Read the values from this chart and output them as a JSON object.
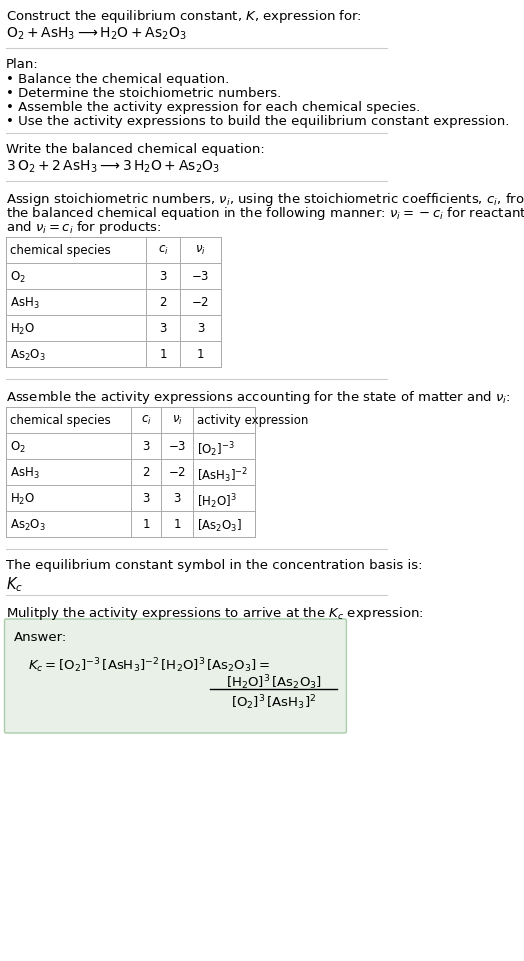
{
  "title_line1": "Construct the equilibrium constant, $K$, expression for:",
  "title_line2": "$\\mathrm{O_2 + AsH_3 \\longrightarrow H_2O + As_2O_3}$",
  "plan_header": "Plan:",
  "plan_bullets": [
    "\\textbullet\\ Balance the chemical equation.",
    "\\textbullet\\ Determine the stoichiometric numbers.",
    "\\textbullet\\ Assemble the activity expression for each chemical species.",
    "\\textbullet\\ Use the activity expressions to build the equilibrium constant expression."
  ],
  "balanced_header": "Write the balanced chemical equation:",
  "balanced_eq": "$\\mathrm{3\\,O_2 + 2\\,AsH_3 \\longrightarrow 3\\,H_2O + As_2O_3}$",
  "stoich_header": "Assign stoichiometric numbers, $\\nu_i$, using the stoichiometric coefficients, $c_i$, from\nthe balanced chemical equation in the following manner: $\\nu_i = -c_i$ for reactants\nand $\\nu_i = c_i$ for products:",
  "table1_headers": [
    "chemical species",
    "$c_i$",
    "$\\nu_i$"
  ],
  "table1_rows": [
    [
      "$\\mathrm{O_2}$",
      "3",
      "$-3$"
    ],
    [
      "$\\mathrm{AsH_3}$",
      "2",
      "$-2$"
    ],
    [
      "$\\mathrm{H_2O}$",
      "3",
      "3"
    ],
    [
      "$\\mathrm{As_2O_3}$",
      "1",
      "1"
    ]
  ],
  "activity_header": "Assemble the activity expressions accounting for the state of matter and $\\nu_i$:",
  "table2_headers": [
    "chemical species",
    "$c_i$",
    "$\\nu_i$",
    "activity expression"
  ],
  "table2_rows": [
    [
      "$\\mathrm{O_2}$",
      "3",
      "$-3$",
      "$[\\mathrm{O_2}]^{-3}$"
    ],
    [
      "$\\mathrm{AsH_3}$",
      "2",
      "$-2$",
      "$[\\mathrm{AsH_3}]^{-2}$"
    ],
    [
      "$\\mathrm{H_2O}$",
      "3",
      "3",
      "$[\\mathrm{H_2O}]^3$"
    ],
    [
      "$\\mathrm{As_2O_3}$",
      "1",
      "1",
      "$[\\mathrm{As_2O_3}]$"
    ]
  ],
  "kc_text": "The equilibrium constant symbol in the concentration basis is:",
  "kc_symbol": "$K_c$",
  "multiply_text": "Mulitply the activity expressions to arrive at the $K_c$ expression:",
  "answer_label": "Answer:",
  "answer_eq": "$K_c = [\\mathrm{O_2}]^{-3}\\,[\\mathrm{AsH_3}]^{-2}\\,[\\mathrm{H_2O}]^3\\,[\\mathrm{As_2O_3}] = \\dfrac{[\\mathrm{H_2O}]^3\\,[\\mathrm{As_2O_3}]}{[\\mathrm{O_2}]^3\\,[\\mathrm{AsH_3}]^2}$",
  "bg_color": "#ffffff",
  "text_color": "#000000",
  "table_border_color": "#aaaaaa",
  "answer_box_color": "#e8f0e8",
  "answer_box_border": "#aaccaa",
  "separator_color": "#cccccc",
  "font_size": 9.5,
  "small_font": 8.5
}
